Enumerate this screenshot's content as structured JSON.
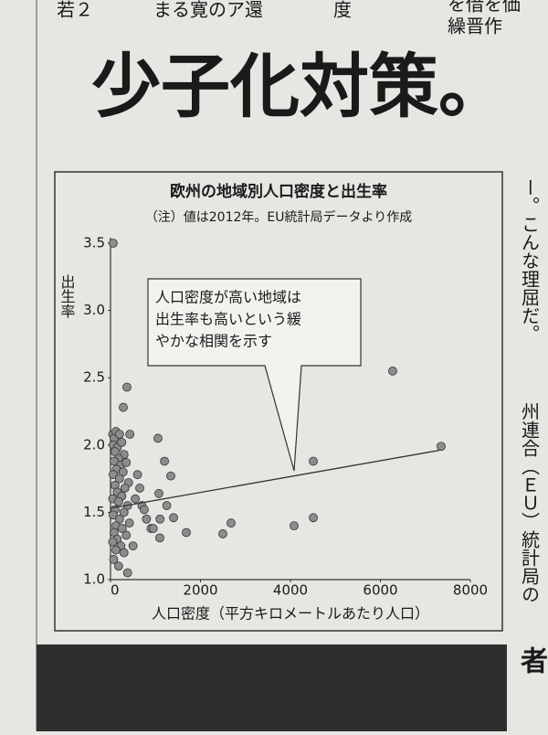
{
  "page": {
    "top_snippets": [
      "若２",
      "まる寛のア還",
      "度",
      "を借を価",
      "繰晋作"
    ],
    "headline": "少子化対策。",
    "side_text": [
      "ー。こんな理屈だ。",
      "州連合（ＥＵ）統計局の"
    ],
    "bottom_char": "者"
  },
  "chart_data": {
    "type": "scatter",
    "title": "欧州の地域別人口密度と出生率",
    "subtitle": "（注）値は2012年。EU統計局データより作成",
    "x_label": "人口密度（平方キロメートルあたり人口）",
    "y_label": "出生率",
    "annotation": [
      "人口密度が高い地域は",
      "出生率も高いという緩",
      "やかな相関を示す"
    ],
    "xlim": [
      0,
      8000
    ],
    "ylim": [
      1,
      3.5
    ],
    "xticks": [
      0,
      2000,
      4000,
      6000,
      8000
    ],
    "yticks": [
      {
        "value": 1,
        "label": "1.0"
      },
      1.5,
      {
        "value": 2,
        "label": "2.0"
      },
      2.5,
      {
        "value": 3,
        "label": "3.0"
      },
      3.5
    ],
    "color": "#8c8c8c",
    "x": [
      50,
      80,
      120,
      200,
      60,
      150,
      250,
      100,
      300,
      180,
      80,
      220,
      350,
      130,
      280,
      60,
      200,
      400,
      100,
      320,
      150,
      250,
      50,
      180,
      380,
      100,
      300,
      60,
      200,
      420,
      120,
      260,
      80,
      350,
      150,
      50,
      230,
      120,
      300,
      70,
      180,
      380,
      500,
      550,
      600,
      700,
      800,
      650,
      900,
      750,
      60,
      365,
      284,
      430,
      1055,
      1340,
      1076,
      1250,
      950,
      1096,
      1401,
      1685,
      2497,
      2680,
      4081,
      4508,
      4508,
      6274,
      7350,
      1200,
      1100
    ],
    "values": [
      2.08,
      2.05,
      2.1,
      2.08,
      2.0,
      1.98,
      2.02,
      1.95,
      1.93,
      1.9,
      1.88,
      1.85,
      1.87,
      1.82,
      1.8,
      1.78,
      1.75,
      1.72,
      1.7,
      1.68,
      1.65,
      1.62,
      1.6,
      1.58,
      1.55,
      1.52,
      1.5,
      1.48,
      1.45,
      1.42,
      1.4,
      1.38,
      1.35,
      1.33,
      1.3,
      1.28,
      1.25,
      1.22,
      1.2,
      1.15,
      1.1,
      1.05,
      1.25,
      1.6,
      1.78,
      1.55,
      1.45,
      1.68,
      1.38,
      1.52,
      3.5,
      2.43,
      2.28,
      2.08,
      2.05,
      1.77,
      1.64,
      1.55,
      1.38,
      1.31,
      1.46,
      1.35,
      1.34,
      1.42,
      1.4,
      1.46,
      1.88,
      2.55,
      1.99,
      1.88,
      1.45
    ],
    "trend_line": {
      "x": [
        0,
        7300
      ],
      "values": [
        1.53,
        1.96
      ]
    }
  }
}
